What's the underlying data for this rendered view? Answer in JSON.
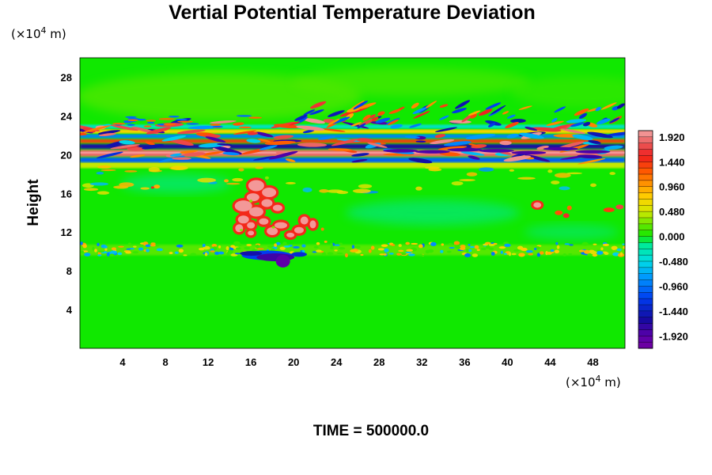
{
  "chart_data": {
    "type": "heatmap",
    "title": "Vertial Potential Temperature Deviation",
    "xlabel": "",
    "ylabel": "Height",
    "x_unit_prefix": "(×10",
    "x_unit_exp": "4",
    "x_unit_suffix": " m)",
    "y_unit_prefix": "(×10",
    "y_unit_exp": "4",
    "y_unit_suffix": " m)",
    "xlim": [
      0,
      51
    ],
    "ylim": [
      0,
      30
    ],
    "x_ticks": [
      "4",
      "8",
      "12",
      "16",
      "20",
      "24",
      "28",
      "32",
      "36",
      "40",
      "44",
      "48"
    ],
    "x_tick_values": [
      4,
      8,
      12,
      16,
      20,
      24,
      28,
      32,
      36,
      40,
      44,
      48
    ],
    "y_ticks": [
      "4",
      "8",
      "12",
      "16",
      "20",
      "24",
      "28"
    ],
    "y_tick_values": [
      4,
      8,
      12,
      16,
      20,
      24,
      28
    ],
    "colorbar": {
      "range": [
        -2.16,
        2.04
      ],
      "levels": 35,
      "labels": [
        "1.920",
        "1.440",
        "0.960",
        "0.480",
        "0.000",
        "-0.480",
        "-0.960",
        "-1.440",
        "-1.920"
      ],
      "label_values": [
        1.92,
        1.44,
        0.96,
        0.48,
        0.0,
        -0.48,
        -0.96,
        -1.44,
        -1.92
      ],
      "colors_high_to_low": [
        "#f4a4a4",
        "#ff3030",
        "#ffa000",
        "#d8e800",
        "#00e000",
        "#00e8d8",
        "#0050f0",
        "#1010a0",
        "#7000a0"
      ]
    },
    "background_value": 0.0,
    "features": [
      {
        "name": "upper layer band",
        "x_range": [
          0,
          51
        ],
        "y_range": [
          19.5,
          23
        ],
        "value_range": [
          -1.92,
          1.92
        ]
      },
      {
        "name": "warm anomaly cluster",
        "x_range": [
          14,
          22.5
        ],
        "y_range": [
          11,
          17.5
        ],
        "value_range": [
          1.0,
          1.92
        ]
      },
      {
        "name": "cold anomaly",
        "x_range": [
          15,
          21
        ],
        "y_range": [
          8,
          10
        ],
        "value_range": [
          -1.92,
          -1.0
        ]
      },
      {
        "name": "mid-level perturbations",
        "x_range": [
          0,
          51
        ],
        "y_range": [
          9.5,
          11
        ],
        "value_range": [
          -0.96,
          0.96
        ]
      },
      {
        "name": "secondary warm spots",
        "x_range": [
          41,
          51
        ],
        "y_range": [
          13,
          15.5
        ],
        "value_range": [
          0.48,
          1.92
        ]
      }
    ],
    "legend": "right",
    "grid": false
  },
  "footer": {
    "time_label": "TIME = 500000.0"
  }
}
